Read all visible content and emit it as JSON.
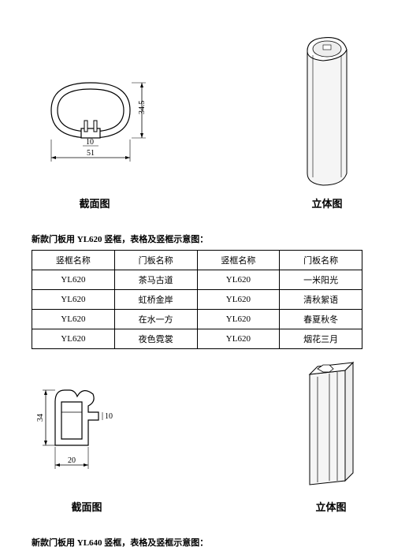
{
  "section1": {
    "dim_width": "51",
    "dim_height": "34.5",
    "dim_slot": "10",
    "caption_left": "截面图",
    "caption_right": "立体图"
  },
  "table_intro": "新款门板用 YL620 竖框，表格及竖框示意图：",
  "table": {
    "headers": [
      "竖框名称",
      "门板名称",
      "竖框名称",
      "门板名称"
    ],
    "rows": [
      [
        "YL620",
        "茶马古道",
        "YL620",
        "一米阳光"
      ],
      [
        "YL620",
        "虹桥金岸",
        "YL620",
        "清秋絮语"
      ],
      [
        "YL620",
        "在水一方",
        "YL620",
        "春夏秋冬"
      ],
      [
        "YL620",
        "夜色霓裳",
        "YL620",
        "烟花三月"
      ]
    ],
    "header_bg": "#ffffff",
    "border_color": "#000000"
  },
  "section2": {
    "dim_width": "20",
    "dim_height": "34",
    "dim_slot": "10",
    "caption_left": "截面图",
    "caption_right": "立体图"
  },
  "footer_intro": "新款门板用 YL640 竖框，表格及竖框示意图："
}
